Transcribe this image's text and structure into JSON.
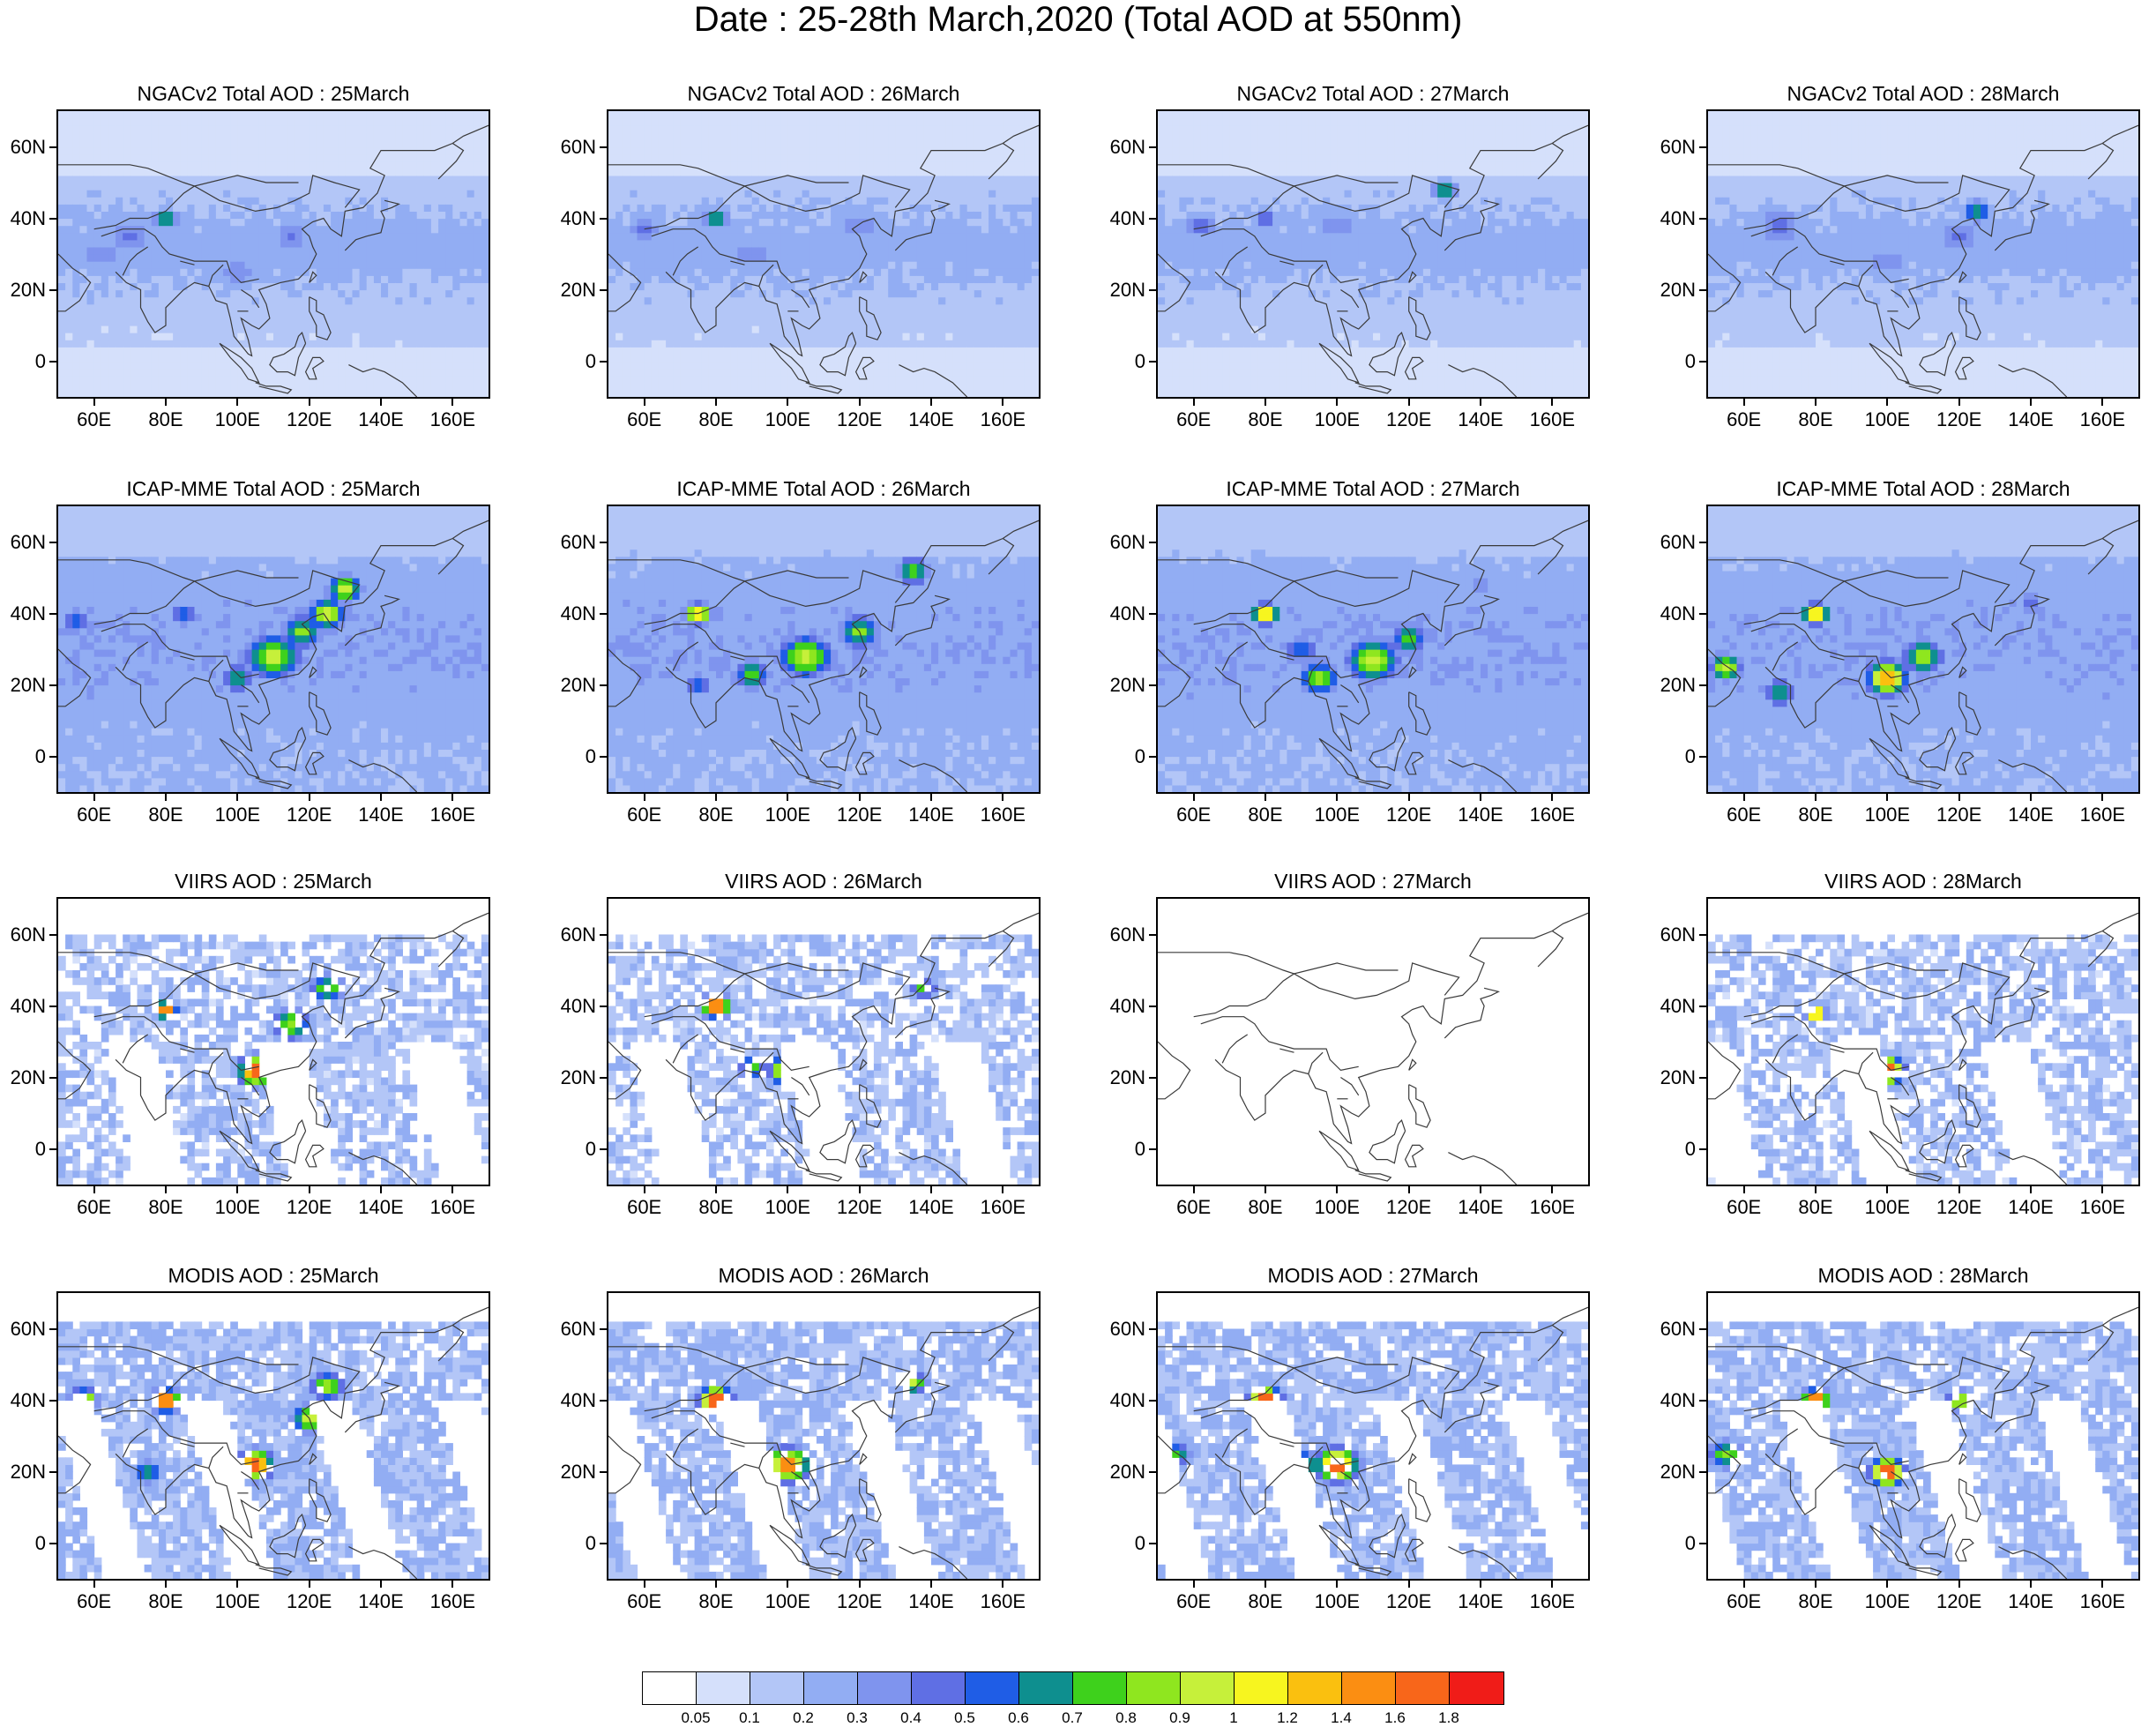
{
  "title": "Date : 25-28th March,2020 (Total AOD at 550nm)",
  "map_extent": {
    "lon_min": 50,
    "lon_max": 170,
    "lat_min": -10,
    "lat_max": 70
  },
  "lon_ticks": [
    "60E",
    "80E",
    "100E",
    "120E",
    "140E",
    "160E"
  ],
  "lon_tick_values": [
    60,
    80,
    100,
    120,
    140,
    160
  ],
  "lat_ticks": [
    "60N",
    "40N",
    "20N",
    "0"
  ],
  "lat_tick_values": [
    60,
    40,
    20,
    0
  ],
  "rows": [
    {
      "dataset": "NGACv2",
      "style": "smooth_low",
      "titles": [
        "NGACv2 Total AOD : 25March",
        "NGACv2 Total AOD : 26March",
        "NGACv2 Total AOD : 27March",
        "NGACv2 Total AOD : 28March"
      ]
    },
    {
      "dataset": "ICAP-MME",
      "style": "smooth_high",
      "titles": [
        "ICAP-MME Total AOD : 25March",
        "ICAP-MME Total AOD : 26March",
        "ICAP-MME Total AOD : 27March",
        "ICAP-MME Total AOD : 28March"
      ]
    },
    {
      "dataset": "VIIRS",
      "style": "swath_sparse",
      "titles": [
        "VIIRS AOD : 25March",
        "VIIRS AOD : 26March",
        "VIIRS AOD : 27March",
        "VIIRS AOD : 28March"
      ]
    },
    {
      "dataset": "MODIS",
      "style": "swath_dense",
      "titles": [
        "MODIS AOD : 25March",
        "MODIS AOD : 26March",
        "MODIS AOD : 27March",
        "MODIS AOD : 28March"
      ]
    }
  ],
  "colorbar": {
    "labels": [
      "0.05",
      "0.1",
      "0.2",
      "0.3",
      "0.4",
      "0.5",
      "0.6",
      "0.7",
      "0.8",
      "0.9",
      "1",
      "1.2",
      "1.4",
      "1.6",
      "1.8"
    ],
    "colors": [
      "#ffffff",
      "#d5e0fb",
      "#b3c6f7",
      "#92adf3",
      "#7f94ee",
      "#5f6fe4",
      "#1f5de6",
      "#0e8f8f",
      "#3ed11c",
      "#8fe61f",
      "#c6f03a",
      "#f7f51f",
      "#fac00f",
      "#fb8e12",
      "#f8661a",
      "#f01c18"
    ]
  }
}
